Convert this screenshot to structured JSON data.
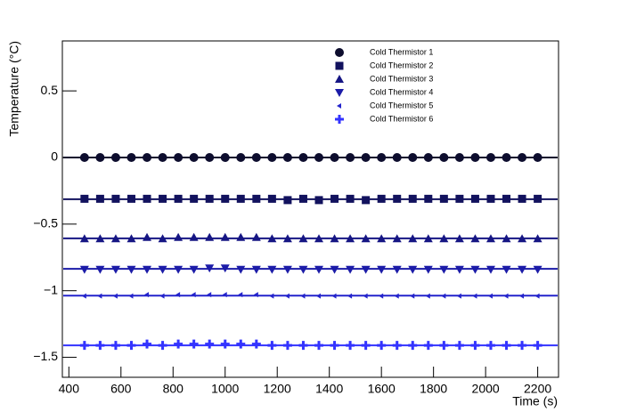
{
  "chart_data": {
    "type": "scatter",
    "xlabel": "Time (s)",
    "ylabel": "Temperature (°C)",
    "xlim": [
      375,
      2280
    ],
    "ylim": [
      -1.65,
      0.875
    ],
    "xticks": [
      400,
      600,
      800,
      1000,
      1200,
      1400,
      1600,
      1800,
      2000,
      2200
    ],
    "yticks": [
      {
        "value": -1.5,
        "label": "−1.5"
      },
      {
        "value": -1,
        "label": "−1"
      },
      {
        "value": -0.5,
        "label": "−0.5"
      },
      0,
      0.5
    ],
    "x": [
      460,
      520,
      580,
      640,
      700,
      760,
      820,
      880,
      940,
      1000,
      1060,
      1120,
      1180,
      1240,
      1300,
      1360,
      1420,
      1480,
      1540,
      1600,
      1660,
      1720,
      1780,
      1840,
      1900,
      1960,
      2020,
      2080,
      2140,
      2200
    ],
    "series": [
      {
        "name": "Cold Thermistor 1",
        "color": "#0d0d2e",
        "marker": "circle",
        "fit": 0,
        "values": [
          0,
          0,
          0,
          0,
          0,
          0,
          0,
          0,
          0,
          0,
          0,
          0,
          0,
          0,
          0,
          0,
          0,
          0,
          0,
          0,
          0,
          0,
          0,
          0,
          0,
          0,
          0,
          0,
          0,
          0
        ]
      },
      {
        "name": "Cold Thermistor 2",
        "color": "#12125e",
        "marker": "square",
        "fit": -0.313,
        "values": [
          -0.31,
          -0.31,
          -0.31,
          -0.31,
          -0.31,
          -0.31,
          -0.31,
          -0.31,
          -0.31,
          -0.31,
          -0.31,
          -0.31,
          -0.31,
          -0.32,
          -0.31,
          -0.32,
          -0.31,
          -0.31,
          -0.32,
          -0.31,
          -0.31,
          -0.31,
          -0.31,
          -0.31,
          -0.31,
          -0.31,
          -0.31,
          -0.31,
          -0.31,
          -0.31
        ]
      },
      {
        "name": "Cold Thermistor 3",
        "color": "#161684",
        "marker": "triangle-up",
        "fit": -0.607,
        "values": [
          -0.61,
          -0.61,
          -0.61,
          -0.61,
          -0.6,
          -0.61,
          -0.6,
          -0.6,
          -0.6,
          -0.6,
          -0.6,
          -0.6,
          -0.61,
          -0.61,
          -0.61,
          -0.61,
          -0.61,
          -0.61,
          -0.61,
          -0.61,
          -0.61,
          -0.61,
          -0.61,
          -0.61,
          -0.61,
          -0.61,
          -0.61,
          -0.61,
          -0.61,
          -0.61
        ]
      },
      {
        "name": "Cold Thermistor 4",
        "color": "#1c1ca8",
        "marker": "triangle-down",
        "fit": -0.836,
        "values": [
          -0.84,
          -0.84,
          -0.84,
          -0.84,
          -0.84,
          -0.84,
          -0.84,
          -0.84,
          -0.83,
          -0.83,
          -0.84,
          -0.84,
          -0.84,
          -0.84,
          -0.84,
          -0.84,
          -0.84,
          -0.84,
          -0.84,
          -0.84,
          -0.84,
          -0.84,
          -0.84,
          -0.84,
          -0.84,
          -0.84,
          -0.84,
          -0.84,
          -0.84,
          -0.84
        ]
      },
      {
        "name": "Cold Thermistor 5",
        "color": "#2424cc",
        "marker": "triangle-left",
        "fit": -1.037,
        "values": [
          -1.04,
          -1.04,
          -1.04,
          -1.04,
          -1.03,
          -1.04,
          -1.03,
          -1.03,
          -1.03,
          -1.03,
          -1.03,
          -1.03,
          -1.04,
          -1.04,
          -1.04,
          -1.04,
          -1.04,
          -1.04,
          -1.04,
          -1.04,
          -1.04,
          -1.04,
          -1.04,
          -1.04,
          -1.04,
          -1.04,
          -1.04,
          -1.04,
          -1.04,
          -1.04
        ]
      },
      {
        "name": "Cold Thermistor 6",
        "color": "#3333ff",
        "marker": "plus",
        "fit": -1.41,
        "values": [
          -1.41,
          -1.41,
          -1.41,
          -1.41,
          -1.4,
          -1.41,
          -1.4,
          -1.4,
          -1.4,
          -1.4,
          -1.4,
          -1.4,
          -1.41,
          -1.41,
          -1.41,
          -1.41,
          -1.41,
          -1.41,
          -1.41,
          -1.41,
          -1.41,
          -1.41,
          -1.41,
          -1.41,
          -1.41,
          -1.41,
          -1.41,
          -1.41,
          -1.41,
          -1.41
        ]
      }
    ]
  }
}
